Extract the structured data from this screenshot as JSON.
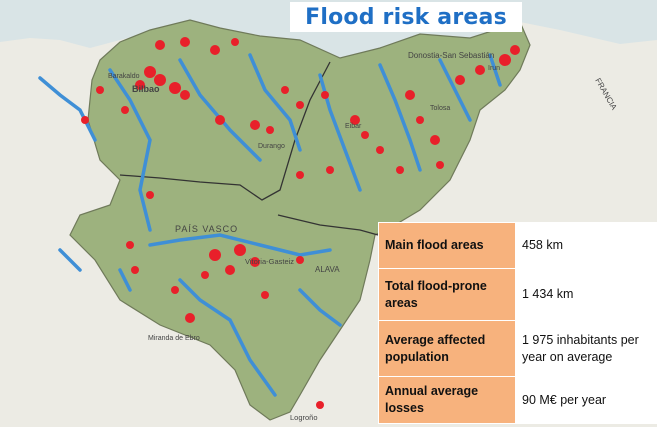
{
  "title": "Flood risk areas",
  "colors": {
    "sea": "#d9e4e6",
    "land_in": "#9db27e",
    "land_out": "#ecebe4",
    "river": "#3f8fd6",
    "flood_area": "#e8202a",
    "stat_label_bg": "#f7b27d",
    "title_text": "#1f6fc5"
  },
  "map_labels": {
    "donostia": "Donostia-San Sebastián",
    "bilbao": "Bilbao",
    "barakaldo": "Barakaldo",
    "pais_vasco": "PAÍS VASCO",
    "vitoria": "Vitoria-Gasteiz",
    "alava": "ALAVA",
    "miranda": "Miranda de Ebro",
    "logrono": "Logroño",
    "durango": "Durango",
    "irun": "Irun",
    "eibar": "Eibar",
    "tolosa": "Tolosa",
    "francia": "FRANCIA"
  },
  "stats": [
    {
      "label": "Main flood areas",
      "value": "458 km"
    },
    {
      "label": "Total flood-prone areas",
      "value": "1 434 km"
    },
    {
      "label": "Average affected population",
      "value": "1 975 inhabitants per year on average"
    },
    {
      "label": "Annual average losses",
      "value": "90 M€ per year"
    }
  ]
}
